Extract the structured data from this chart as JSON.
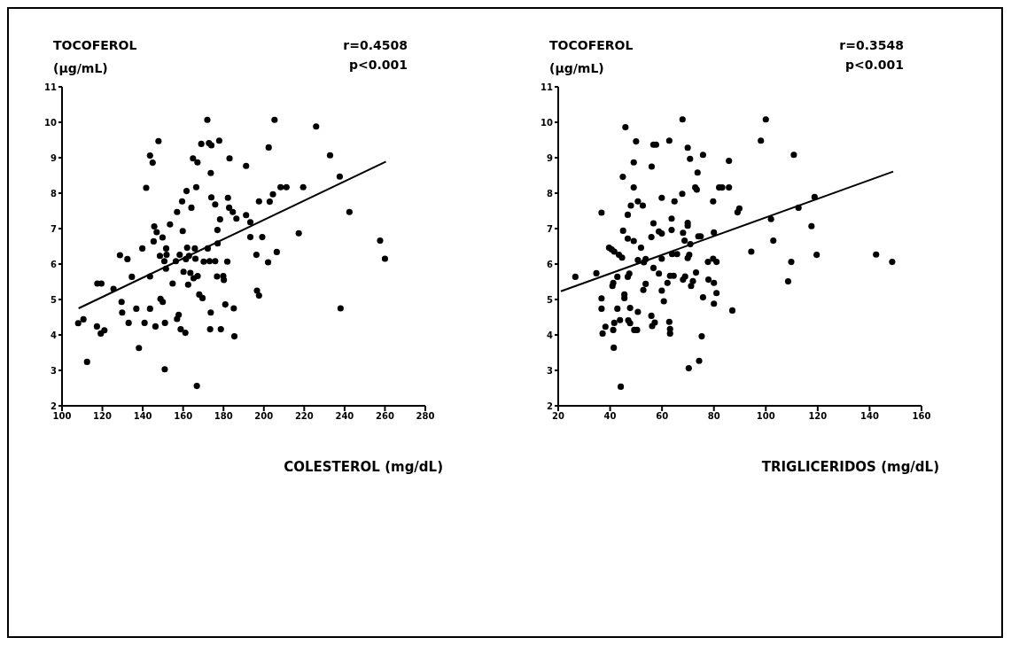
{
  "chart_data": [
    {
      "type": "scatter",
      "ylabel": "TOCOFEROL (µg/mL)",
      "xlabel": "COLESTEROL (mg/dL)",
      "annotations": [
        "r=0.4508",
        "p<0.001"
      ],
      "xlim": [
        100,
        280
      ],
      "xticks": [
        100,
        120,
        140,
        160,
        180,
        200,
        220,
        240,
        260,
        280
      ],
      "ylim": [
        2,
        11
      ],
      "yticks": [
        2,
        3,
        4,
        5,
        6,
        7,
        8,
        9,
        10,
        11
      ],
      "grid": false,
      "series": [
        {
          "type": "scatter",
          "marker": "circle",
          "color": "#000000",
          "x": [
            108,
            110.6,
            112.4,
            117.3,
            117.5,
            119.5,
            119.2,
            121,
            125.5,
            128.7,
            129.5,
            129.8,
            132.4,
            133,
            134.6,
            136.8,
            138.1,
            139.8,
            140.9,
            141.7,
            143.6,
            143.6,
            143.6,
            144.9,
            145.4,
            145.7,
            146.3,
            146.9,
            147.8,
            148.5,
            148.8,
            149.8,
            149.9,
            150.7,
            150.9,
            151,
            151.6,
            151.5,
            151.8,
            153.5,
            154.8,
            156.4,
            157,
            157,
            157.8,
            158.3,
            158.8,
            159.5,
            159.8,
            160.2,
            161.1,
            161.4,
            161.7,
            162,
            162.5,
            162.9,
            163.6,
            164.1,
            164.9,
            165.2,
            165.8,
            166.1,
            166.5,
            166.8,
            167.1,
            167.2,
            168,
            169.6,
            169,
            170.2,
            172,
            172.2,
            172.8,
            173.1,
            173.7,
            173.4,
            173.7,
            174,
            174,
            175.9,
            175.9,
            176.8,
            177,
            177.1,
            177.9,
            178.3,
            178.7,
            179.9,
            180.2,
            180.9,
            181.9,
            182.2,
            182.8,
            183,
            184.6,
            185.1,
            185.4,
            205.3,
            225.9,
            191.2,
            202.4,
            232.8,
            237.6,
            208.3,
            211.2,
            219.5,
            204.5,
            197.6,
            202.9,
            186.4,
            191.2,
            193.3,
            242.4,
            193.3,
            199.2,
            217.3,
            257.6,
            196.3,
            206.4,
            202.1,
            260,
            196.6,
            197.6,
            238
          ],
          "values": [
            4.33,
            4.44,
            3.24,
            4.24,
            5.45,
            5.45,
            4.04,
            4.13,
            5.3,
            6.25,
            4.93,
            4.63,
            6.14,
            4.34,
            5.64,
            4.74,
            3.63,
            6.44,
            4.34,
            8.15,
            9.06,
            4.74,
            5.65,
            8.86,
            6.64,
            7.06,
            4.24,
            6.9,
            9.47,
            6.23,
            5.02,
            6.75,
            4.93,
            6.08,
            3.03,
            4.34,
            6.44,
            5.87,
            6.26,
            7.12,
            5.45,
            6.08,
            7.47,
            4.45,
            4.57,
            6.26,
            4.16,
            7.77,
            6.93,
            5.78,
            4.06,
            6.14,
            8.06,
            6.46,
            5.42,
            6.23,
            5.75,
            7.59,
            8.98,
            5.6,
            6.44,
            6.15,
            8.17,
            2.56,
            8.87,
            5.66,
            5.14,
            5.04,
            9.39,
            6.07,
            10.07,
            6.44,
            9.41,
            6.08,
            4.63,
            4.16,
            8.57,
            9.35,
            7.88,
            6.08,
            7.68,
            5.65,
            6.96,
            6.58,
            9.48,
            7.26,
            4.16,
            5.66,
            5.55,
            4.86,
            6.07,
            7.87,
            7.59,
            8.98,
            7.47,
            4.75,
            3.96,
            10.07,
            9.88,
            8.77,
            9.29,
            9.07,
            8.47,
            8.17,
            8.17,
            8.17,
            7.97,
            7.77,
            7.76,
            7.28,
            7.38,
            7.18,
            7.47,
            6.76,
            6.76,
            6.87,
            6.66,
            6.26,
            6.34,
            6.05,
            6.15,
            5.25,
            5.11,
            4.75
          ]
        },
        {
          "type": "line",
          "marker": "none",
          "color": "#000000",
          "x": [
            108.2,
            260.5
          ],
          "values": [
            4.75,
            8.89
          ]
        }
      ]
    },
    {
      "type": "scatter",
      "ylabel": "TOCOFEROL (µg/mL)",
      "xlabel": "TRIGLICERIDOS (mg/dL)",
      "annotations": [
        "r=0.3548",
        "p<0.001"
      ],
      "xlim": [
        20,
        160
      ],
      "xticks": [
        20,
        40,
        60,
        80,
        100,
        120,
        140,
        160
      ],
      "ylim": [
        2,
        11
      ],
      "yticks": [
        2,
        3,
        4,
        5,
        6,
        7,
        8,
        9,
        10,
        11
      ],
      "grid": false,
      "series": [
        {
          "type": "scatter",
          "marker": "circle",
          "color": "#000000",
          "x": [
            26.6,
            34.7,
            36.7,
            36.7,
            36.7,
            37.1,
            38.2,
            39.6,
            40.6,
            40.9,
            41.2,
            41.2,
            41.4,
            41.6,
            41.6,
            42.8,
            42.8,
            43.4,
            43.8,
            44.1,
            44.6,
            44.9,
            45,
            45.5,
            45.5,
            45.9,
            46.8,
            46.8,
            46.8,
            47,
            47.4,
            47.7,
            47.7,
            48,
            49.1,
            49.1,
            49.1,
            49.3,
            50,
            50.4,
            50.7,
            50.7,
            50.7,
            51.9,
            52.6,
            52.8,
            53,
            53.7,
            53.7,
            55.9,
            55.9,
            56,
            56.2,
            56.7,
            56.7,
            56.7,
            57.7,
            57.2,
            58.8,
            58.8,
            59.9,
            59.9,
            59.9,
            59.9,
            60.7,
            62.1,
            62.8,
            62.8,
            63.1,
            63.1,
            63.1,
            63.7,
            63.7,
            63.9,
            64.5,
            64.8,
            65.8,
            67.8,
            67.9,
            68.1,
            68.1,
            68.7,
            68.9,
            69.9,
            69.9,
            69.9,
            69.9,
            70.3,
            70.5,
            70.8,
            70.9,
            71.2,
            71.9,
            72.8,
            73.1,
            73.4,
            73.7,
            74,
            74.3,
            74.9,
            75.3,
            75.8,
            75.8,
            77.7,
            77.9,
            79.7,
            79.7,
            80,
            80,
            80,
            81,
            81,
            82,
            83.2,
            85.8,
            85.8,
            87.1,
            89.1,
            89.8,
            94.4,
            100,
            98.1,
            110.8,
            118.8,
            112.6,
            102,
            117.6,
            102.9,
            119.6,
            109.8,
            142.5,
            148.7,
            108.6
          ],
          "values": [
            5.64,
            5.74,
            7.45,
            5.03,
            4.74,
            4.04,
            4.23,
            6.46,
            6.41,
            5.38,
            5.47,
            4.14,
            3.64,
            6.35,
            4.34,
            4.74,
            5.64,
            6.26,
            4.42,
            2.54,
            6.18,
            8.46,
            6.94,
            5.14,
            5.04,
            9.86,
            7.39,
            6.72,
            5.64,
            4.41,
            5.73,
            4.76,
            4.33,
            7.65,
            8.87,
            8.16,
            6.65,
            4.14,
            9.46,
            4.14,
            7.77,
            4.65,
            6.11,
            6.46,
            7.65,
            5.27,
            6.05,
            5.44,
            6.14,
            6.76,
            4.54,
            8.75,
            4.25,
            5.89,
            7.15,
            9.37,
            9.37,
            4.35,
            5.73,
            6.92,
            7.87,
            6.15,
            5.25,
            6.86,
            4.95,
            5.47,
            9.48,
            4.37,
            5.67,
            4.17,
            4.04,
            7.28,
            6.96,
            6.28,
            5.67,
            7.77,
            6.28,
            7.98,
            10.08,
            5.56,
            6.88,
            6.66,
            5.65,
            9.28,
            7.16,
            7.08,
            6.17,
            3.06,
            6.26,
            8.97,
            6.56,
            5.38,
            5.52,
            8.16,
            5.76,
            8.1,
            8.58,
            6.78,
            3.27,
            6.78,
            3.96,
            9.08,
            5.06,
            6.06,
            5.56,
            7.77,
            6.15,
            6.89,
            5.47,
            4.88,
            6.06,
            5.18,
            8.16,
            8.16,
            8.91,
            8.16,
            4.69,
            7.46,
            7.57,
            6.35,
            10.08,
            9.48,
            9.08,
            7.89,
            7.59,
            7.27,
            7.07,
            6.66,
            6.26,
            6.06,
            6.27,
            6.06,
            5.51
          ]
        },
        {
          "type": "line",
          "marker": "none",
          "color": "#000000",
          "x": [
            21,
            149.1
          ],
          "values": [
            5.23,
            8.61
          ]
        }
      ]
    }
  ]
}
